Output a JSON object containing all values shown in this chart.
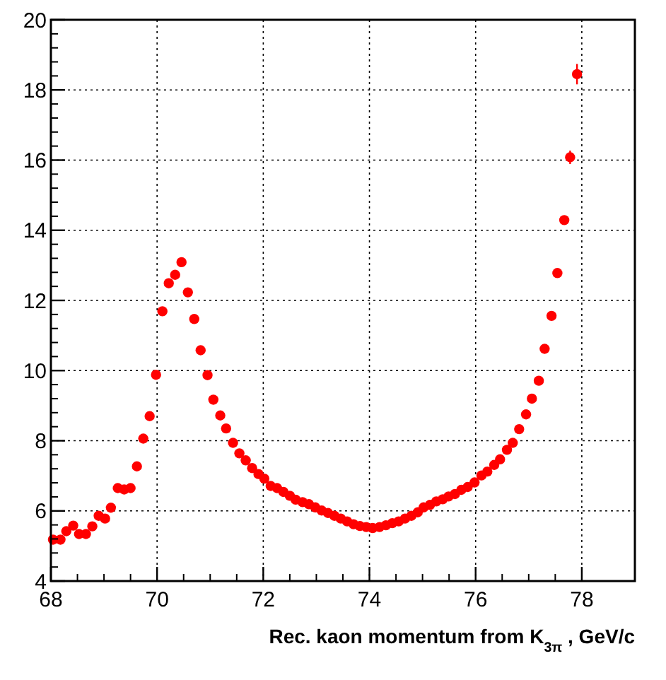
{
  "chart_data": {
    "type": "scatter",
    "xlabel": "Rec. kaon momentum from K$_{3π}$ , GeV/c",
    "xlim": [
      68,
      79
    ],
    "ylim": [
      4,
      20
    ],
    "xticks": [
      68,
      70,
      72,
      74,
      76,
      78
    ],
    "yticks": [
      4,
      6,
      8,
      10,
      12,
      14,
      16,
      18,
      20
    ],
    "grid": true,
    "marker": "circle",
    "series": [
      {
        "color": "#ff0000",
        "x": [
          68.04,
          68.18,
          68.29,
          68.42,
          68.53,
          68.66,
          68.78,
          68.9,
          69.02,
          69.13,
          69.26,
          69.38,
          69.5,
          69.62,
          69.74,
          69.86,
          69.98,
          70.1,
          70.22,
          70.34,
          70.46,
          70.58,
          70.7,
          70.82,
          70.95,
          71.06,
          71.19,
          71.3,
          71.43,
          71.55,
          71.67,
          71.79,
          71.91,
          72.02,
          72.14,
          72.26,
          72.38,
          72.5,
          72.61,
          72.74,
          72.86,
          72.98,
          73.1,
          73.22,
          73.34,
          73.46,
          73.58,
          73.7,
          73.82,
          73.94,
          74.06,
          74.19,
          74.31,
          74.43,
          74.55,
          74.67,
          74.79,
          74.91,
          75.02,
          75.14,
          75.26,
          75.38,
          75.49,
          75.61,
          75.73,
          75.85,
          75.98,
          76.11,
          76.22,
          76.35,
          76.46,
          76.59,
          76.7,
          76.82,
          76.95,
          77.06,
          77.19,
          77.3,
          77.43,
          77.54,
          77.67,
          77.78,
          77.91
        ],
        "values": [
          5.18,
          5.18,
          5.42,
          5.58,
          5.34,
          5.34,
          5.56,
          5.86,
          5.78,
          6.09,
          6.65,
          6.61,
          6.65,
          7.27,
          8.06,
          8.7,
          9.88,
          11.69,
          12.49,
          12.73,
          13.09,
          12.23,
          11.47,
          10.58,
          9.87,
          9.17,
          8.72,
          8.35,
          7.94,
          7.64,
          7.44,
          7.22,
          7.05,
          6.92,
          6.71,
          6.65,
          6.54,
          6.43,
          6.32,
          6.25,
          6.19,
          6.1,
          6.01,
          5.94,
          5.86,
          5.78,
          5.7,
          5.62,
          5.57,
          5.54,
          5.51,
          5.54,
          5.59,
          5.65,
          5.7,
          5.78,
          5.86,
          5.96,
          6.1,
          6.17,
          6.27,
          6.33,
          6.41,
          6.48,
          6.6,
          6.68,
          6.81,
          7.01,
          7.12,
          7.31,
          7.47,
          7.74,
          7.94,
          8.33,
          8.75,
          9.2,
          9.71,
          10.62,
          11.56,
          12.78,
          14.29,
          16.08,
          18.45
        ],
        "errors": [
          null,
          null,
          null,
          null,
          null,
          null,
          null,
          null,
          null,
          null,
          0.1,
          null,
          null,
          null,
          0.1,
          0.1,
          null,
          0.12,
          0.12,
          0.12,
          0.12,
          null,
          null,
          null,
          null,
          null,
          null,
          null,
          null,
          null,
          null,
          null,
          null,
          null,
          null,
          null,
          null,
          null,
          null,
          null,
          null,
          null,
          null,
          null,
          null,
          null,
          null,
          null,
          null,
          null,
          null,
          null,
          null,
          null,
          null,
          null,
          null,
          null,
          null,
          null,
          null,
          null,
          null,
          null,
          null,
          null,
          null,
          null,
          null,
          null,
          null,
          null,
          null,
          null,
          null,
          null,
          null,
          null,
          null,
          null,
          0.12,
          0.19,
          0.29
        ]
      }
    ]
  }
}
